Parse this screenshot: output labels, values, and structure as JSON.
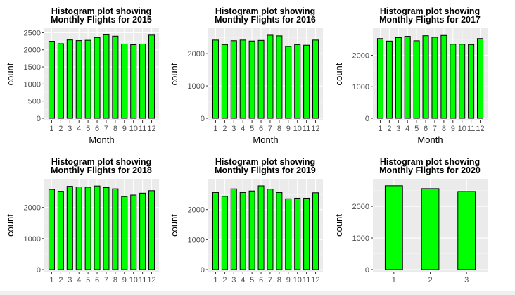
{
  "chart_data": [
    {
      "type": "bar",
      "title": "Histogram plot showing\nMonthly Flights for 2015",
      "xlabel": "Month",
      "ylabel": "count",
      "categories": [
        "1",
        "2",
        "3",
        "4",
        "5",
        "6",
        "7",
        "8",
        "9",
        "10",
        "11",
        "12"
      ],
      "values": [
        2250,
        2180,
        2290,
        2270,
        2280,
        2360,
        2440,
        2400,
        2170,
        2150,
        2170,
        2430
      ],
      "yticks": [
        0,
        500,
        1000,
        1500,
        2000,
        2500
      ],
      "ylim": [
        0,
        2550
      ],
      "colors": {
        "bar": "#00ff00",
        "outline": "#000000",
        "panel": "#ebebeb"
      }
    },
    {
      "type": "bar",
      "title": "Histogram plot showing\nMonthly Flights for 2016",
      "xlabel": "Month",
      "ylabel": "count",
      "categories": [
        "1",
        "2",
        "3",
        "4",
        "5",
        "6",
        "7",
        "8",
        "9",
        "10",
        "11",
        "12"
      ],
      "values": [
        2420,
        2280,
        2400,
        2420,
        2390,
        2410,
        2570,
        2550,
        2220,
        2280,
        2260,
        2420
      ],
      "yticks": [
        0,
        1000,
        2000
      ],
      "ylim": [
        0,
        2700
      ],
      "colors": {
        "bar": "#00ff00",
        "outline": "#000000",
        "panel": "#ebebeb"
      }
    },
    {
      "type": "bar",
      "title": "Histogram plot showing\nMonthly Flights for 2017",
      "xlabel": "Month",
      "ylabel": "count",
      "categories": [
        "1",
        "2",
        "3",
        "4",
        "5",
        "6",
        "7",
        "8",
        "9",
        "10",
        "11",
        "12"
      ],
      "values": [
        2530,
        2450,
        2560,
        2600,
        2460,
        2620,
        2570,
        2630,
        2350,
        2350,
        2340,
        2530
      ],
      "yticks": [
        0,
        1000,
        2000
      ],
      "ylim": [
        0,
        2770
      ],
      "colors": {
        "bar": "#00ff00",
        "outline": "#000000",
        "panel": "#ebebeb"
      }
    },
    {
      "type": "bar",
      "title": "Histogram plot showing\nMonthly Flights for 2018",
      "xlabel": "",
      "ylabel": "count",
      "categories": [
        "1",
        "2",
        "3",
        "4",
        "5",
        "6",
        "7",
        "8",
        "9",
        "10",
        "11",
        "12"
      ],
      "values": [
        2580,
        2520,
        2680,
        2660,
        2650,
        2690,
        2640,
        2600,
        2350,
        2400,
        2460,
        2540
      ],
      "yticks": [
        0,
        1000,
        2000
      ],
      "ylim": [
        0,
        2830
      ],
      "colors": {
        "bar": "#00ff00",
        "outline": "#000000",
        "panel": "#ebebeb"
      }
    },
    {
      "type": "bar",
      "title": "Histogram plot showing\nMonthly Flights for 2019",
      "xlabel": "",
      "ylabel": "count",
      "categories": [
        "1",
        "2",
        "3",
        "4",
        "5",
        "6",
        "7",
        "8",
        "9",
        "10",
        "11",
        "12"
      ],
      "values": [
        2570,
        2440,
        2690,
        2570,
        2620,
        2790,
        2680,
        2570,
        2360,
        2380,
        2380,
        2560
      ],
      "yticks": [
        0,
        1000,
        2000
      ],
      "ylim": [
        0,
        2930
      ],
      "colors": {
        "bar": "#00ff00",
        "outline": "#000000",
        "panel": "#ebebeb"
      }
    },
    {
      "type": "bar",
      "title": "Histogram plot showing\nMonthly Flights for 2020",
      "xlabel": "",
      "ylabel": "count",
      "categories": [
        "1",
        "2",
        "3"
      ],
      "values": [
        2650,
        2560,
        2470
      ],
      "yticks": [
        0,
        1000,
        2000
      ],
      "ylim": [
        0,
        2780
      ],
      "colors": {
        "bar": "#00ff00",
        "outline": "#000000",
        "panel": "#ebebeb"
      }
    }
  ]
}
